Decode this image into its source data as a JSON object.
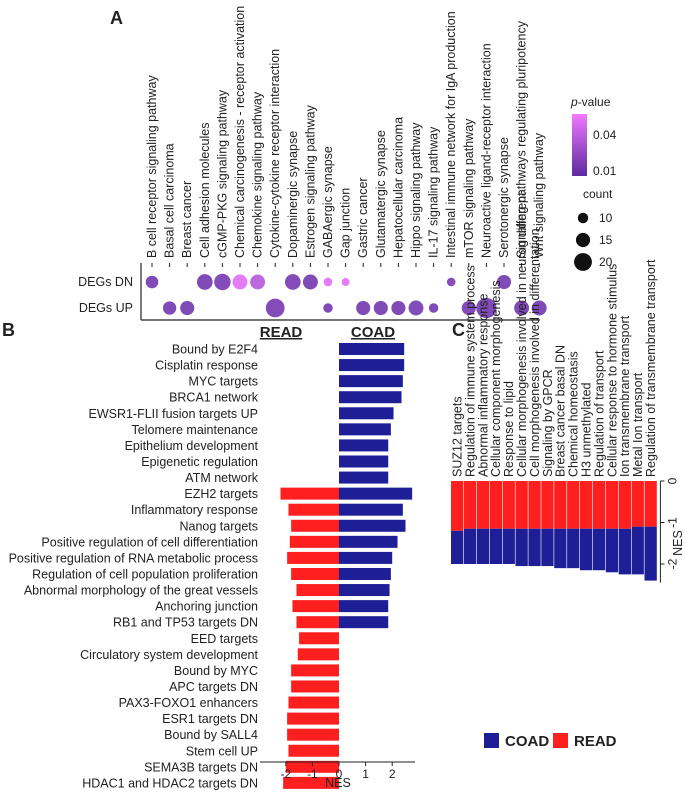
{
  "panel_labels": {
    "a": "A",
    "b": "B",
    "c": "C"
  },
  "colors": {
    "read": "#ff1f1f",
    "coad": "#1e1e96",
    "pval_low": "#5b2aa0",
    "pval_high": "#f278ff",
    "axis": "#222222"
  },
  "chart_data": [
    {
      "type": "scatter",
      "panel": "A",
      "title": "",
      "rows": [
        "DEGs DN",
        "DEGs UP"
      ],
      "categories": [
        "B cell receptor signaling pathway",
        "Basal cell carcinoma",
        "Breast cancer",
        "Cell adhesion molecules",
        "cGMP-PKG signaling pathway",
        "Chemical carcinogenesis - receptor activation",
        "Chemokine signaling pathway",
        "Cytokine-cytokine receptor interaction",
        "Dopaminergic synapse",
        "Estrogen signaling pathway",
        "GABAergic synapse",
        "Gap junction",
        "Gastric cancer",
        "Glutamatergic synapse",
        "Hepatocellular carcinoma",
        "Hippo signaling pathway",
        "IL-17 signaling pathway",
        "Intestinal immune network for IgA production",
        "mTOR signaling pathway",
        "Neuroactive ligand-receptor interaction",
        "Serotonergic synapse",
        "Signaling pathways regulating pluripotency",
        "Wnt signaling pathway"
      ],
      "points": [
        {
          "row": "DEGs DN",
          "category": "B cell receptor signaling pathway",
          "count": 12,
          "pvalue": 0.012
        },
        {
          "row": "DEGs DN",
          "category": "Cell adhesion molecules",
          "count": 16,
          "pvalue": 0.012
        },
        {
          "row": "DEGs DN",
          "category": "cGMP-PKG signaling pathway",
          "count": 17,
          "pvalue": 0.013
        },
        {
          "row": "DEGs DN",
          "category": "Chemical carcinogenesis - receptor activation",
          "count": 15,
          "pvalue": 0.045
        },
        {
          "row": "DEGs DN",
          "category": "Chemokine signaling pathway",
          "count": 15,
          "pvalue": 0.032
        },
        {
          "row": "DEGs DN",
          "category": "Dopaminergic synapse",
          "count": 16,
          "pvalue": 0.013
        },
        {
          "row": "DEGs DN",
          "category": "Estrogen signaling pathway",
          "count": 15,
          "pvalue": 0.012
        },
        {
          "row": "DEGs DN",
          "category": "GABAergic synapse",
          "count": 7,
          "pvalue": 0.045
        },
        {
          "row": "DEGs DN",
          "category": "Gap junction",
          "count": 6,
          "pvalue": 0.045
        },
        {
          "row": "DEGs DN",
          "category": "Intestinal immune network for IgA production",
          "count": 7,
          "pvalue": 0.015
        },
        {
          "row": "DEGs DN",
          "category": "Serotonergic synapse",
          "count": 14,
          "pvalue": 0.012
        },
        {
          "row": "DEGs UP",
          "category": "Basal cell carcinoma",
          "count": 13,
          "pvalue": 0.012
        },
        {
          "row": "DEGs UP",
          "category": "Breast cancer",
          "count": 14,
          "pvalue": 0.012
        },
        {
          "row": "DEGs UP",
          "category": "Cytokine-cytokine receptor interaction",
          "count": 20,
          "pvalue": 0.013
        },
        {
          "row": "DEGs UP",
          "category": "GABAergic synapse",
          "count": 8,
          "pvalue": 0.012
        },
        {
          "row": "DEGs UP",
          "category": "Gastric cancer",
          "count": 14,
          "pvalue": 0.012
        },
        {
          "row": "DEGs UP",
          "category": "Glutamatergic synapse",
          "count": 14,
          "pvalue": 0.012
        },
        {
          "row": "DEGs UP",
          "category": "Hepatocellular carcinoma",
          "count": 14,
          "pvalue": 0.012
        },
        {
          "row": "DEGs UP",
          "category": "Hippo signaling pathway",
          "count": 15,
          "pvalue": 0.013
        },
        {
          "row": "DEGs UP",
          "category": "IL-17 signaling pathway",
          "count": 8,
          "pvalue": 0.012
        },
        {
          "row": "DEGs UP",
          "category": "mTOR signaling pathway",
          "count": 14,
          "pvalue": 0.013
        },
        {
          "row": "DEGs UP",
          "category": "Neuroactive ligand-receptor interaction",
          "count": 22,
          "pvalue": 0.012
        },
        {
          "row": "DEGs UP",
          "category": "Signaling pathways regulating pluripotency",
          "count": 15,
          "pvalue": 0.012
        },
        {
          "row": "DEGs UP",
          "category": "Wnt signaling pathway",
          "count": 15,
          "pvalue": 0.012
        }
      ],
      "color_legend": {
        "title_italic": "p",
        "title_rest": "-value",
        "ticks": [
          "0.04",
          "0.01"
        ],
        "range": [
          0.005,
          0.05
        ]
      },
      "size_legend": {
        "title": "count",
        "values": [
          10,
          15,
          20
        ]
      }
    },
    {
      "type": "bar",
      "panel": "B",
      "orientation": "horizontal",
      "series_headers": [
        "READ",
        "COAD"
      ],
      "xlabel": "NES",
      "xticks": [
        -2,
        -1,
        0,
        1,
        2
      ],
      "xlim": [
        -2.6,
        2.9
      ],
      "categories": [
        "Bound by E2F4",
        "Cisplatin response",
        "MYC targets",
        "BRCA1 network",
        "EWSR1-FLII fusion targets UP",
        "Telomere maintenance",
        "Epithelium development",
        "Epigenetic regulation",
        "ATM network",
        "EZH2 targets",
        "Inflammatory response",
        "Nanog targets",
        "Positive regulation of cell differentiation",
        "Positive regulation of RNA metabolic process",
        "Regulation of cell population proliferation",
        "Abnormal morphology of the great vessels",
        "Anchoring junction",
        "RB1 and TP53 targets DN",
        "EED targets",
        "Circulatory system development",
        "Bound by MYC",
        "APC targets DN",
        "PAX3-FOXO1 enhancers",
        "ESR1 targets DN",
        "Bound by SALL4",
        "Stem cell UP",
        "SEMA3B targets DN",
        "HDAC1 and HDAC2 targets DN"
      ],
      "series": [
        {
          "name": "READ",
          "color": "#ff1f1f",
          "values": [
            null,
            null,
            null,
            null,
            null,
            null,
            null,
            null,
            null,
            -2.2,
            -1.9,
            -1.8,
            -1.85,
            -1.95,
            -1.8,
            -1.6,
            -1.75,
            -1.6,
            -1.5,
            -1.55,
            -1.8,
            -1.8,
            -1.9,
            -1.95,
            -1.95,
            -1.9,
            -2.0,
            -2.1
          ]
        },
        {
          "name": "COAD",
          "color": "#1e1e96",
          "values": [
            2.45,
            2.45,
            2.4,
            2.35,
            2.05,
            1.95,
            1.85,
            1.85,
            1.85,
            2.75,
            2.4,
            2.5,
            2.2,
            2.0,
            1.95,
            1.9,
            1.85,
            1.85,
            null,
            null,
            null,
            null,
            null,
            null,
            null,
            null,
            null,
            null
          ]
        }
      ]
    },
    {
      "type": "bar",
      "panel": "C",
      "orientation": "vertical-stacked",
      "ylabel": "NES",
      "yticks": [
        0,
        -1,
        -2
      ],
      "ylim": [
        -2.45,
        0.1
      ],
      "categories": [
        "SUZ12 targets",
        "Regulation of immune system process",
        "Abnormal inflammatory response",
        "Cellular component morphogenesis",
        "Response to lipid",
        "Cellular morphogenesis involved in neuron different",
        "Cell morphogenesis involved in differentation",
        "Signaling by GPCR",
        "Breast cancer basal DN",
        "Chemical homeostasis",
        "H3 unmethylated",
        "Regulation of transport",
        "Cellular response to hormone stimulus",
        "Ion transmembrane transport",
        "Metal Ion transport",
        "Regulation of transmembrane transport"
      ],
      "series": [
        {
          "name": "READ",
          "color": "#ff1f1f",
          "values": [
            -1.2,
            -1.15,
            -1.15,
            -1.15,
            -1.15,
            -1.15,
            -1.15,
            -1.15,
            -1.15,
            -1.15,
            -1.15,
            -1.15,
            -1.15,
            -1.15,
            -1.1,
            -1.1
          ]
        },
        {
          "name": "COAD",
          "color": "#1e1e96",
          "values": [
            -0.8,
            -0.85,
            -0.85,
            -0.85,
            -0.85,
            -0.9,
            -0.9,
            -0.9,
            -0.95,
            -0.95,
            -1.0,
            -1.0,
            -1.05,
            -1.1,
            -1.15,
            -1.3
          ]
        }
      ],
      "legend": [
        "COAD",
        "READ"
      ]
    }
  ]
}
